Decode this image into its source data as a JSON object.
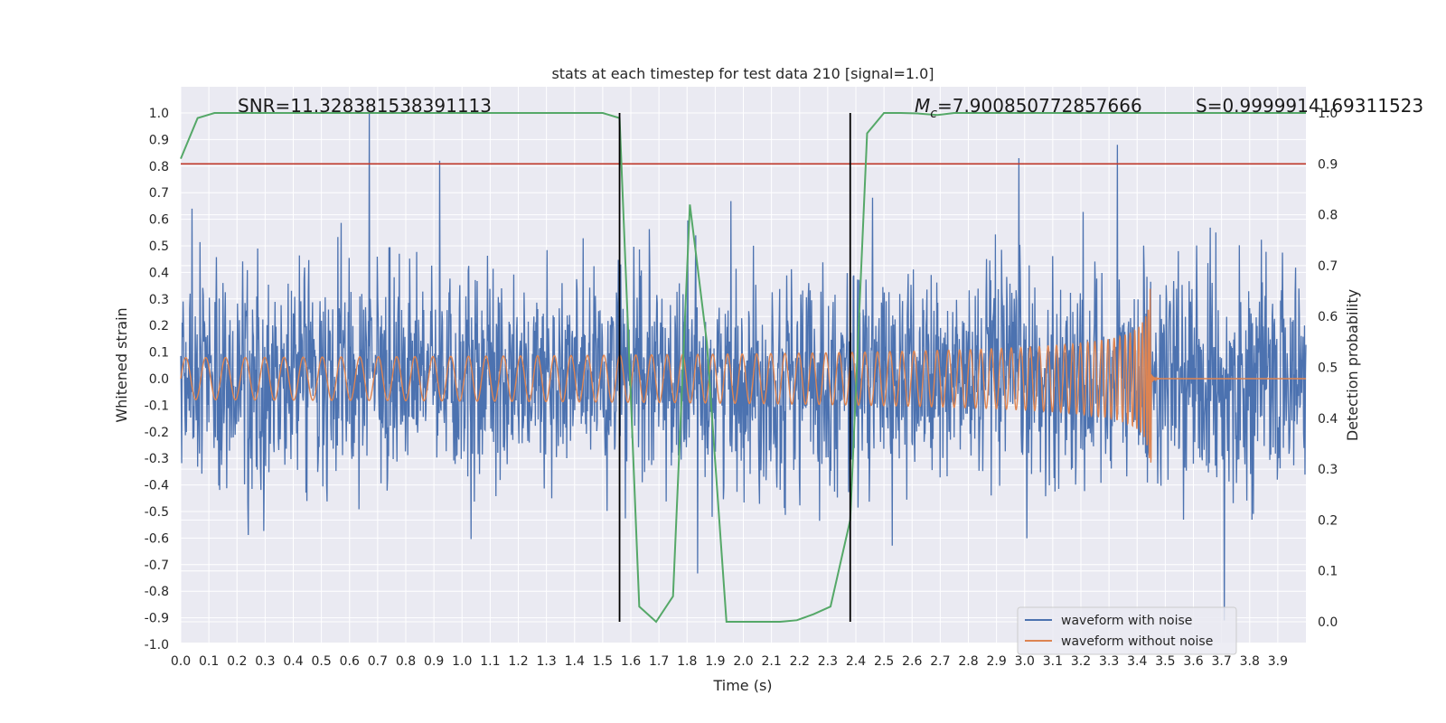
{
  "chart_data": {
    "type": "line",
    "title": "stats at each timestep for test data 210 [signal=1.0]",
    "xlabel": "Time (s)",
    "ylabel_left": "Whitened strain",
    "ylabel_right": "Detection probability",
    "xlim": [
      0.0,
      4.0
    ],
    "ylim_left": [
      -1.0,
      1.0
    ],
    "ylim_right": [
      0.0,
      1.0
    ],
    "x_ticks": [
      "0.0",
      "0.1",
      "0.2",
      "0.3",
      "0.4",
      "0.5",
      "0.6",
      "0.7",
      "0.8",
      "0.9",
      "1.0",
      "1.1",
      "1.2",
      "1.3",
      "1.4",
      "1.5",
      "1.6",
      "1.7",
      "1.8",
      "1.9",
      "2.0",
      "2.1",
      "2.2",
      "2.3",
      "2.4",
      "2.5",
      "2.6",
      "2.7",
      "2.8",
      "2.9",
      "3.0",
      "3.1",
      "3.2",
      "3.3",
      "3.4",
      "3.5",
      "3.6",
      "3.7",
      "3.8",
      "3.9"
    ],
    "y_ticks_left": [
      "1.0",
      "0.9",
      "0.8",
      "0.7",
      "0.6",
      "0.5",
      "0.4",
      "0.3",
      "0.2",
      "0.1",
      "0.0",
      "-0.1",
      "-0.2",
      "-0.3",
      "-0.4",
      "-0.5",
      "-0.6",
      "-0.7",
      "-0.8",
      "-0.9",
      "-1.0"
    ],
    "y_ticks_right": [
      "1.0",
      "0.9",
      "0.8",
      "0.7",
      "0.6",
      "0.5",
      "0.4",
      "0.3",
      "0.2",
      "0.1",
      "0.0"
    ],
    "annotations": {
      "snr": "SNR=11.328381538391113",
      "mc_symbol": "M",
      "mc_sub": "c",
      "mc_value": "=7.900850772857666",
      "s": "S=0.9999914169311523"
    },
    "threshold": {
      "value": 0.9,
      "axis": "right",
      "color": "#c0392b"
    },
    "vlines": [
      1.56,
      2.38
    ],
    "series": [
      {
        "name": "waveform with noise",
        "axis": "left",
        "color": "#4c72b0",
        "kind": "noise",
        "std": 0.2,
        "peak_x": [
          0.04,
          0.67,
          0.92,
          2.98,
          3.33,
          3.71
        ],
        "peak_y": [
          0.64,
          1.0,
          0.82,
          0.83,
          0.88,
          -0.91
        ]
      },
      {
        "name": "waveform without noise",
        "axis": "left",
        "color": "#dd8452",
        "kind": "chirp",
        "merger_time": 3.45,
        "peak_amplitude": 0.34,
        "base_amplitude": 0.02
      },
      {
        "name": "detection probability",
        "axis": "right",
        "color": "#55a868",
        "x": [
          0.0,
          0.06,
          0.12,
          0.2,
          0.5,
          1.0,
          1.5,
          1.56,
          1.63,
          1.69,
          1.75,
          1.81,
          1.87,
          1.94,
          2.0,
          2.13,
          2.19,
          2.25,
          2.31,
          2.38,
          2.44,
          2.5,
          2.56,
          2.62,
          2.69,
          2.75,
          3.0,
          3.5,
          4.0
        ],
        "y": [
          0.91,
          0.99,
          1.0,
          1.0,
          1.0,
          1.0,
          1.0,
          0.99,
          0.03,
          0.0,
          0.05,
          0.82,
          0.55,
          0.0,
          0.0,
          0.0,
          0.003,
          0.015,
          0.03,
          0.2,
          0.96,
          1.0,
          1.0,
          0.999,
          0.996,
          1.0,
          1.0,
          1.0,
          1.0
        ]
      }
    ],
    "legend": {
      "placement": "bottom-right",
      "items": [
        {
          "label": "waveform with noise",
          "color": "#4c72b0"
        },
        {
          "label": "waveform without noise",
          "color": "#dd8452"
        }
      ]
    }
  }
}
